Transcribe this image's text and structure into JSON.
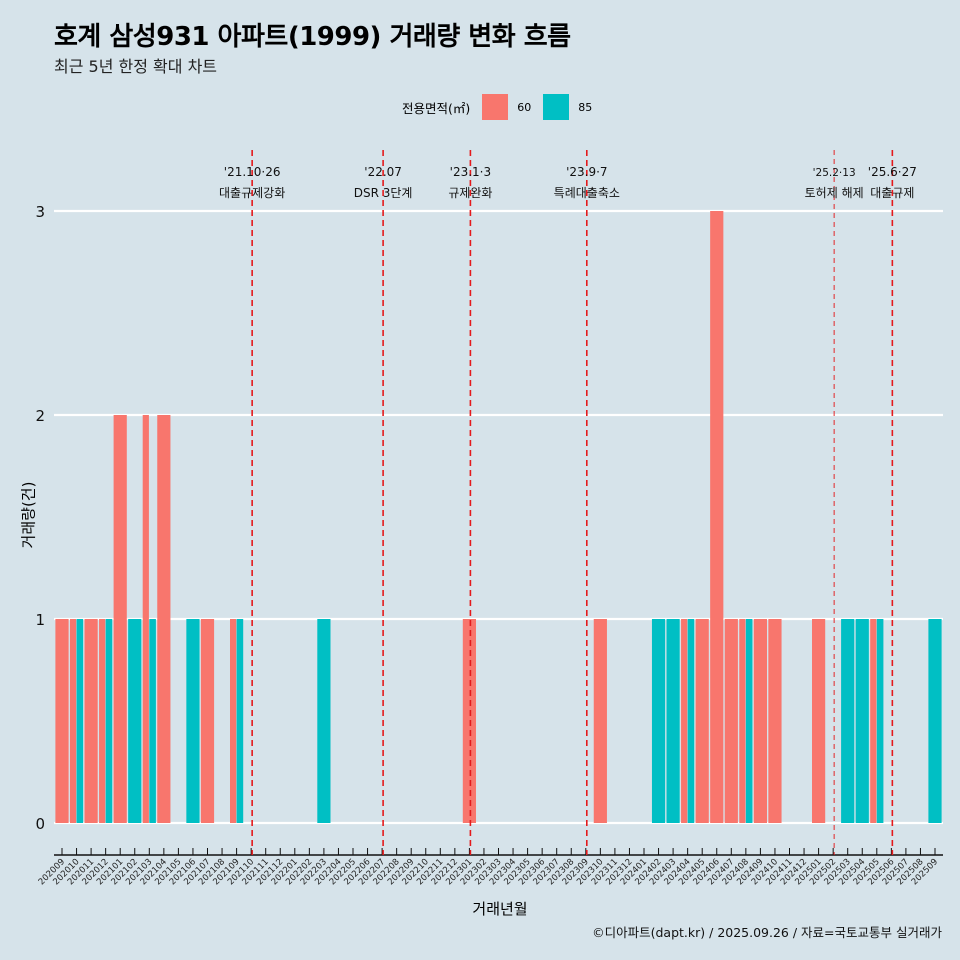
{
  "title": "호계 삼성931 아파트(1999) 거래량 변화 흐름",
  "subtitle": "최근 5년 한정 확대 차트",
  "footer": "©디아파트(dapt.kr) / 2025.09.26 / 자료=국토교통부 실거래가",
  "colors": {
    "s60": "#f8766d",
    "s85": "#00bfc4",
    "vline": "#e41a1c",
    "background": "#d6e3ea",
    "grid": "#ffffff"
  },
  "chart_data": {
    "type": "bar",
    "barmode": "dodge",
    "title": "호계 삼성931 아파트(1999) 거래량 변화 흐름",
    "subtitle": "최근 5년 한정 확대 차트",
    "xlabel": "거래년월",
    "ylabel": "거래량(건)",
    "ylim": [
      0,
      3
    ],
    "yticks": [
      "0",
      "1",
      "2",
      "3"
    ],
    "legend_title": "전용면적(㎡)",
    "legend_position": "top",
    "categories": [
      "202009",
      "202010",
      "202011",
      "202012",
      "202101",
      "202102",
      "202103",
      "202104",
      "202105",
      "202106",
      "202107",
      "202108",
      "202109",
      "202110",
      "202111",
      "202112",
      "202201",
      "202202",
      "202203",
      "202204",
      "202205",
      "202206",
      "202207",
      "202208",
      "202209",
      "202210",
      "202211",
      "202212",
      "202301",
      "202302",
      "202303",
      "202304",
      "202305",
      "202306",
      "202307",
      "202308",
      "202309",
      "202310",
      "202311",
      "202312",
      "202401",
      "202402",
      "202403",
      "202404",
      "202405",
      "202406",
      "202407",
      "202408",
      "202409",
      "202410",
      "202411",
      "202412",
      "202501",
      "202502",
      "202503",
      "202504",
      "202505",
      "202506",
      "202507",
      "202508",
      "202509"
    ],
    "series": [
      {
        "name": "60",
        "values": [
          1,
          1,
          1,
          1,
          2,
          0,
          2,
          2,
          0,
          0,
          1,
          0,
          1,
          0,
          0,
          0,
          0,
          0,
          0,
          0,
          0,
          0,
          0,
          0,
          0,
          0,
          0,
          0,
          1,
          0,
          0,
          0,
          0,
          0,
          0,
          0,
          0,
          1,
          0,
          0,
          0,
          0,
          0,
          1,
          1,
          3,
          1,
          1,
          1,
          1,
          0,
          0,
          1,
          0,
          0,
          0,
          1,
          0,
          0,
          0,
          0
        ]
      },
      {
        "name": "85",
        "values": [
          0,
          1,
          0,
          1,
          0,
          1,
          1,
          0,
          0,
          1,
          0,
          0,
          1,
          0,
          0,
          0,
          0,
          0,
          1,
          0,
          0,
          0,
          0,
          0,
          0,
          0,
          0,
          0,
          0,
          0,
          0,
          0,
          0,
          0,
          0,
          0,
          0,
          0,
          0,
          0,
          0,
          1,
          1,
          1,
          0,
          0,
          0,
          1,
          0,
          0,
          0,
          0,
          0,
          0,
          1,
          1,
          1,
          0,
          0,
          0,
          1
        ]
      }
    ],
    "annotations": [
      {
        "month": "202110",
        "date": "'21.10·26",
        "label": "대출규제강화",
        "style": "bold"
      },
      {
        "month": "202207",
        "date": "'22.07",
        "label": "DSR 3단계",
        "style": "bold"
      },
      {
        "month": "202301",
        "date": "'23.1·3",
        "label": "규제완화",
        "style": "bold"
      },
      {
        "month": "202309",
        "date": "'23.9·7",
        "label": "특례대출축소",
        "style": "bold"
      },
      {
        "month": "202502",
        "date": "'25.2·13",
        "label": "토허제 해제",
        "style": "light"
      },
      {
        "month": "202506",
        "date": "'25.6·27",
        "label": "대출규제",
        "style": "bold"
      }
    ]
  }
}
